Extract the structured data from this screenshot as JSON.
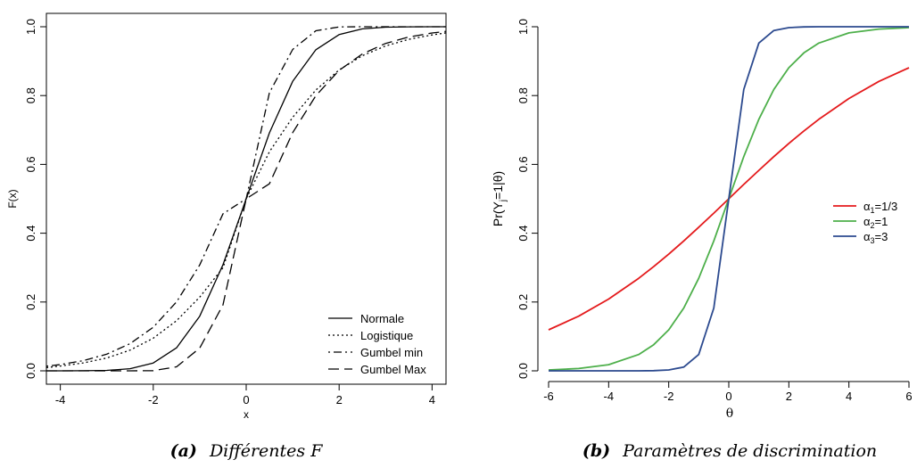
{
  "chart_data": [
    {
      "type": "line",
      "panel_letter": "(a)",
      "caption": "Différentes F",
      "xlabel": "x",
      "ylabel": "F(x)",
      "xlim": [
        -4.3,
        4.3
      ],
      "ylim": [
        0,
        1
      ],
      "x_ticks": [
        "-4",
        "-2",
        "0",
        "2",
        "4"
      ],
      "y_ticks": [
        "0.0",
        "0.2",
        "0.4",
        "0.6",
        "0.8",
        "1.0"
      ],
      "x": [
        -4.3,
        -4,
        -3.5,
        -3,
        -2.5,
        -2,
        -1.5,
        -1,
        -0.5,
        0,
        0.5,
        1,
        1.5,
        2,
        2.5,
        3,
        3.5,
        4,
        4.3
      ],
      "series": [
        {
          "name": "Normale",
          "style": "solid",
          "values": [
            0.0,
            0.0,
            0.0002,
            0.0013,
            0.0062,
            0.0228,
            0.0668,
            0.1587,
            0.3085,
            0.5,
            0.6915,
            0.8413,
            0.9332,
            0.9772,
            0.9938,
            0.9987,
            0.9998,
            1.0,
            1.0
          ]
        },
        {
          "name": "Logistique",
          "style": "dotted",
          "values": [
            0.0093,
            0.014,
            0.023,
            0.0374,
            0.0601,
            0.0948,
            0.1455,
            0.2142,
            0.2998,
            0.5,
            0.6365,
            0.7369,
            0.8161,
            0.8745,
            0.9158,
            0.9442,
            0.9635,
            0.9761,
            0.9822
          ]
        },
        {
          "name": "Gumbel min",
          "style": "dotdash",
          "values": [
            0.0135,
            0.0181,
            0.0297,
            0.0485,
            0.0789,
            0.1266,
            0.2002,
            0.3077,
            0.4564,
            0.5,
            0.8081,
            0.934,
            0.9883,
            0.9994,
            1.0,
            1.0,
            1.0,
            1.0,
            1.0
          ]
        },
        {
          "name": "Gumbel Max",
          "style": "dashed",
          "values": [
            0.0,
            0.0,
            0.0,
            0.0,
            0.0,
            0.0006,
            0.0117,
            0.066,
            0.1919,
            0.5,
            0.5436,
            0.6923,
            0.7998,
            0.8734,
            0.9211,
            0.9515,
            0.9703,
            0.9819,
            0.9865
          ]
        }
      ],
      "legend": "bottom-right"
    },
    {
      "type": "line",
      "panel_letter": "(b)",
      "caption": "Paramètres de discrimination",
      "xlabel": "θ",
      "ylabel": "Pr(Y_j=1|θ)",
      "xlim": [
        -6,
        6
      ],
      "ylim": [
        0,
        1
      ],
      "x_ticks": [
        "-6",
        "-4",
        "-2",
        "0",
        "2",
        "4",
        "6"
      ],
      "y_ticks": [
        "0.0",
        "0.2",
        "0.4",
        "0.6",
        "0.8",
        "1.0"
      ],
      "x": [
        -6,
        -5,
        -4,
        -3,
        -2.5,
        -2,
        -1.5,
        -1,
        -0.5,
        0,
        0.5,
        1,
        1.5,
        2,
        2.5,
        3,
        4,
        5,
        6
      ],
      "series": [
        {
          "name": "α1=1/3",
          "legend_base": "α",
          "legend_sub": "1",
          "legend_tail": "=1/3",
          "color": "#e41a1c",
          "values": [
            0.1192,
            0.1589,
            0.2086,
            0.2689,
            0.3029,
            0.3392,
            0.3775,
            0.4174,
            0.4584,
            0.5,
            0.5416,
            0.5826,
            0.6225,
            0.6608,
            0.6971,
            0.7311,
            0.7914,
            0.8411,
            0.8808
          ]
        },
        {
          "name": "α2=1",
          "legend_base": "α",
          "legend_sub": "2",
          "legend_tail": "=1",
          "color": "#4daf4a",
          "values": [
            0.0025,
            0.0067,
            0.018,
            0.0474,
            0.0759,
            0.1192,
            0.1824,
            0.2689,
            0.3775,
            0.5,
            0.6225,
            0.7311,
            0.8176,
            0.8808,
            0.9241,
            0.9526,
            0.982,
            0.9933,
            0.9975
          ]
        },
        {
          "name": "α3=3",
          "legend_base": "α",
          "legend_sub": "3",
          "legend_tail": "=3",
          "color": "#2c4a8f",
          "values": [
            0.0,
            0.0,
            0.0,
            0.0001,
            0.0006,
            0.0025,
            0.011,
            0.0474,
            0.1824,
            0.5,
            0.8176,
            0.9526,
            0.989,
            0.9975,
            0.9994,
            0.9999,
            1.0,
            1.0,
            1.0
          ]
        }
      ],
      "legend": "right"
    }
  ]
}
